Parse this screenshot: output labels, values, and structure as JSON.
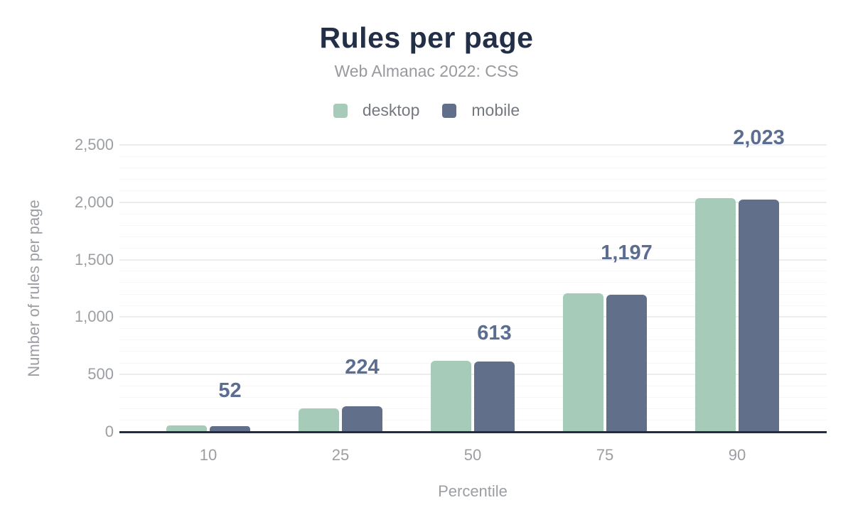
{
  "header": {
    "title": "Rules per page",
    "subtitle": "Web Almanac 2022: CSS"
  },
  "colors": {
    "title": "#232f47",
    "subtitle": "#97999e",
    "legend_text": "#74787f",
    "tick_text": "#9b9ea3",
    "annotation_text": "#5b6d90",
    "axis_line": "#222e45",
    "gridline_major": "#ececee",
    "gridline_minor": "#f6f6f7",
    "desktop": "#a7cbb9",
    "mobile": "#616f8a"
  },
  "chart_data": {
    "type": "bar",
    "title": "Rules per page",
    "subtitle": "Web Almanac 2022: CSS",
    "categories": [
      "10",
      "25",
      "50",
      "75",
      "90"
    ],
    "series": [
      {
        "name": "desktop",
        "color": "#a7cbb9",
        "values": [
          55,
          207,
          617,
          1210,
          2035
        ]
      },
      {
        "name": "mobile",
        "color": "#616f8a",
        "values": [
          52,
          224,
          613,
          1197,
          2023
        ]
      }
    ],
    "annotations": {
      "series": "mobile",
      "labels": [
        "52",
        "224",
        "613",
        "1,197",
        "2,023"
      ],
      "baseline_values": [
        300,
        500,
        800,
        1500,
        2500
      ]
    },
    "xlabel": "Percentile",
    "ylabel": "Number of rules per page",
    "ylim": [
      0,
      2500
    ],
    "yticks": {
      "values": [
        0,
        500,
        1000,
        1500,
        2000,
        2500
      ],
      "labels": [
        "0",
        "500",
        "1,000",
        "1,500",
        "2,000",
        "2,500"
      ]
    },
    "grid": {
      "minor_step": 100,
      "major_step": 500,
      "legend_position": "top"
    }
  }
}
